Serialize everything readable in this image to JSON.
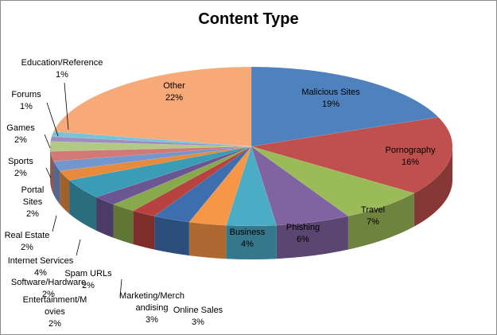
{
  "chart_data": {
    "type": "pie",
    "title": "Content Type",
    "categories": [
      "Malicious Sites",
      "Pornography",
      "Travel",
      "Phishing",
      "Business",
      "Online Sales",
      "Marketing/Merchandising",
      "Entertainment/Movies",
      "Software/Hardware",
      "Spam URLs",
      "Internet Services",
      "Real Estate",
      "Portal Sites",
      "Sports",
      "Games",
      "Forums",
      "Education/Reference",
      "Other"
    ],
    "values": [
      19,
      16,
      7,
      6,
      4,
      3,
      3,
      2,
      2,
      2,
      4,
      2,
      2,
      2,
      2,
      1,
      1,
      22
    ],
    "value_labels": [
      "19%",
      "16%",
      "7%",
      "6%",
      "4%",
      "3%",
      "3%",
      "2%",
      "2%",
      "2%",
      "4%",
      "2%",
      "2%",
      "2%",
      "2%",
      "1%",
      "1%",
      "22%"
    ],
    "colors": [
      "#4f81bd",
      "#c0504d",
      "#9bbb59",
      "#8064a2",
      "#4bacc6",
      "#f79646",
      "#3d6fb0",
      "#b7423f",
      "#88a94c",
      "#6b5592",
      "#3b9cb6",
      "#e88a3c",
      "#7396cf",
      "#d07976",
      "#b1c985",
      "#a08dbf",
      "#79c3d8",
      "#f7aa78"
    ]
  }
}
